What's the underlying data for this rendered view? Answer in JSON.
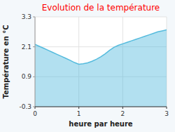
{
  "chart_data": {
    "type": "area",
    "title": "Evolution de la température",
    "xlabel": "heure par heure",
    "ylabel": "Température en °C",
    "color": "#55bbdd",
    "x": [
      0,
      0.1,
      0.2,
      0.3,
      0.4,
      0.5,
      0.6,
      0.7,
      0.8,
      0.9,
      1.0,
      1.1,
      1.2,
      1.3,
      1.4,
      1.5,
      1.6,
      1.7,
      1.8,
      1.9,
      2.0,
      2.1,
      2.2,
      2.3,
      2.4,
      2.5,
      2.6,
      2.7,
      2.8,
      2.9,
      3.0
    ],
    "values": [
      2.2,
      2.12,
      2.04,
      1.96,
      1.88,
      1.8,
      1.72,
      1.64,
      1.56,
      1.47,
      1.4,
      1.42,
      1.46,
      1.52,
      1.6,
      1.7,
      1.82,
      1.96,
      2.08,
      2.16,
      2.22,
      2.28,
      2.34,
      2.4,
      2.46,
      2.52,
      2.58,
      2.64,
      2.7,
      2.74,
      2.78
    ],
    "xlim": [
      0,
      3
    ],
    "ylim": [
      -0.3,
      3.3
    ],
    "xticks": [
      0,
      1,
      2,
      3
    ],
    "yticks": [
      -0.3,
      0.9,
      2.1,
      3.3
    ],
    "grid": true
  }
}
